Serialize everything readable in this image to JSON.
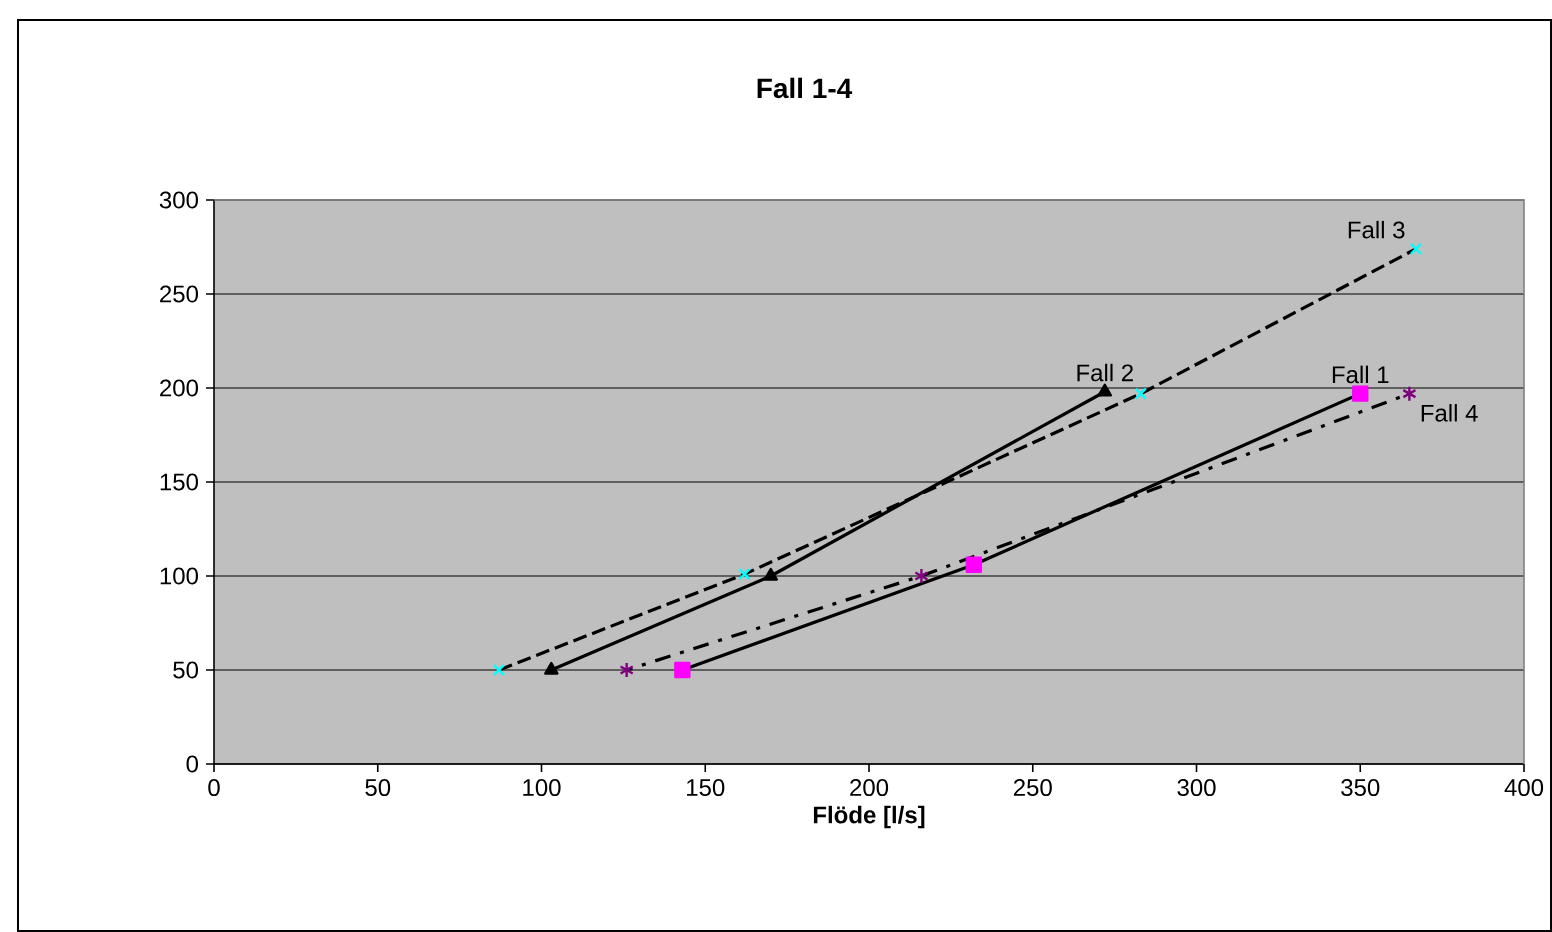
{
  "chart_data": {
    "type": "line",
    "title": "Fall 1-4",
    "xlabel": "Flöde [l/s]",
    "xlim": [
      0,
      400
    ],
    "xticks": [
      0,
      50,
      100,
      150,
      200,
      250,
      300,
      350,
      400
    ],
    "ylim": [
      0,
      300
    ],
    "yticks": [
      0,
      50,
      100,
      150,
      200,
      250,
      300
    ],
    "grid": "y",
    "series": [
      {
        "name": "Fall 1",
        "color": "#ff00ff",
        "marker": "square",
        "line_style": "solid",
        "x": [
          143,
          232,
          350
        ],
        "values": [
          50,
          106,
          197
        ]
      },
      {
        "name": "Fall 2",
        "color": "#000000",
        "marker": "triangle",
        "line_style": "solid",
        "x": [
          103,
          170,
          272
        ],
        "values": [
          50,
          100,
          198
        ]
      },
      {
        "name": "Fall 3",
        "color": "#00ffff",
        "marker": "cross",
        "line_style": "dashed",
        "x": [
          87,
          162,
          283,
          367
        ],
        "values": [
          50,
          101,
          197,
          274
        ]
      },
      {
        "name": "Fall 4",
        "color": "#800080",
        "marker": "cross",
        "line_style": "dashdotted",
        "x": [
          126,
          216,
          365
        ],
        "values": [
          50,
          100,
          197
        ]
      }
    ]
  }
}
